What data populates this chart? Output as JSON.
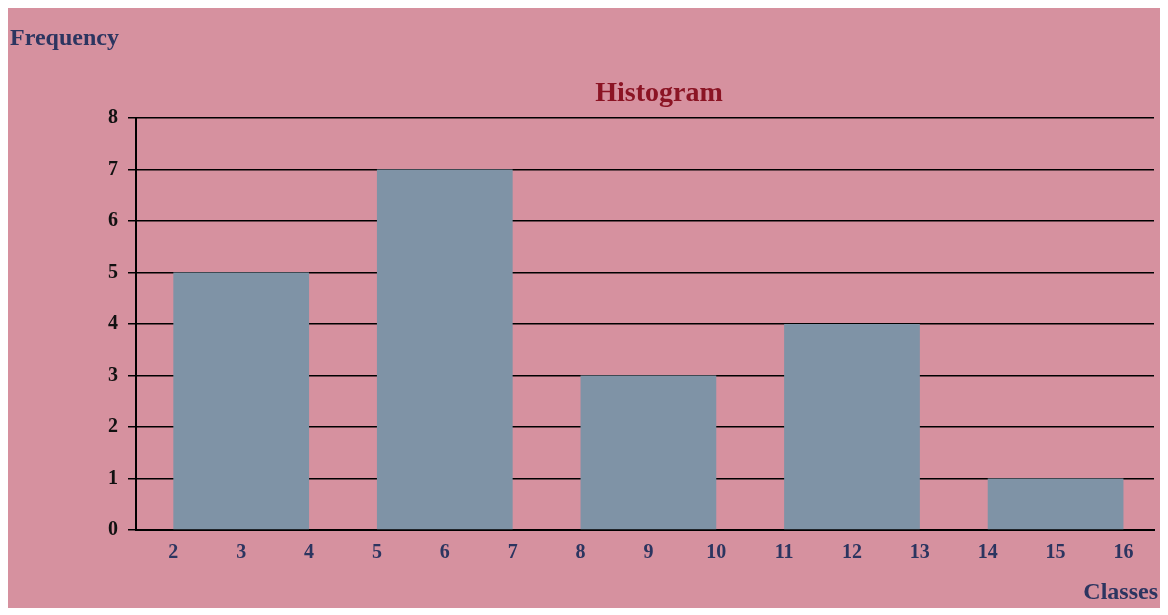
{
  "chart_data": {
    "type": "histogram",
    "title": "Histogram",
    "xlabel": "Classes",
    "ylabel": "Frequency",
    "bins": [
      2,
      4,
      5,
      7,
      8,
      10,
      11,
      13,
      14,
      16
    ],
    "values": [
      5,
      0,
      7,
      0,
      3,
      0,
      4,
      0,
      1
    ],
    "color": "#7f93a6",
    "xlim": [
      1.45,
      16.45
    ],
    "xticks": [
      2,
      3,
      4,
      5,
      6,
      7,
      8,
      9,
      10,
      11,
      12,
      13,
      14,
      15,
      16
    ],
    "ylim": [
      0,
      8
    ],
    "yticks": [
      0,
      1,
      2,
      3,
      4,
      5,
      6,
      7,
      8
    ],
    "grid": "y",
    "legend": false
  }
}
